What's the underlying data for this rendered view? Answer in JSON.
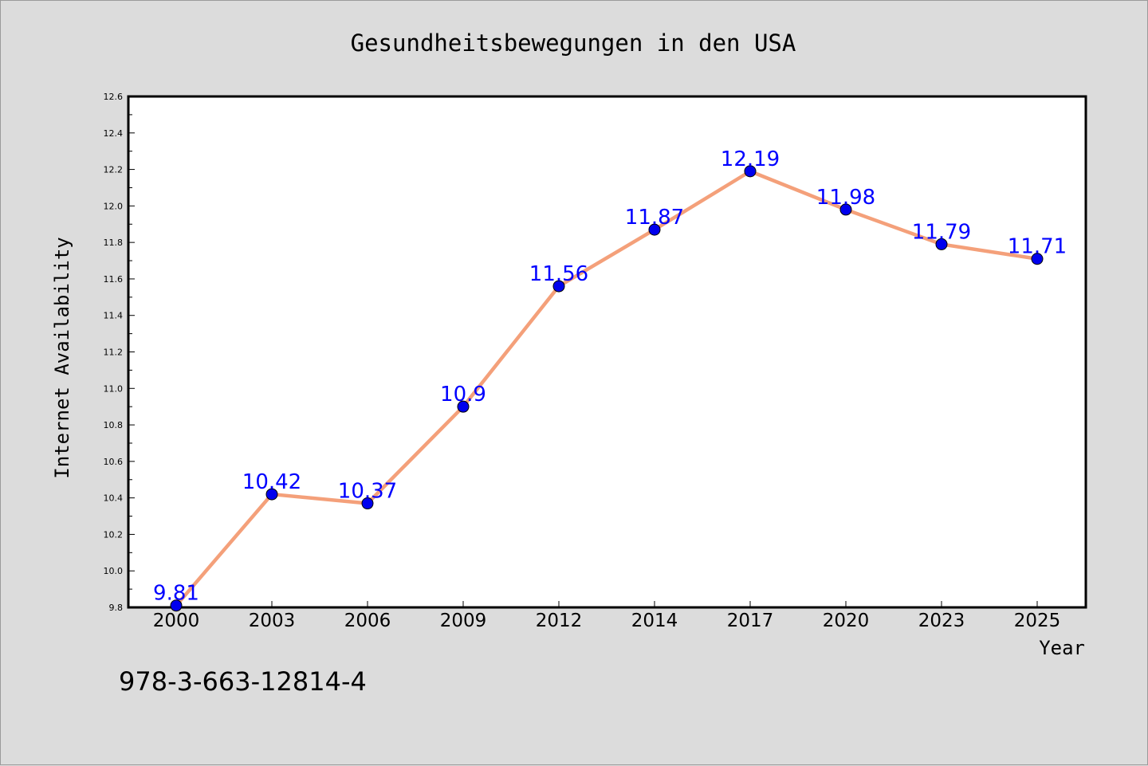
{
  "chart_data": {
    "type": "line",
    "title": "Gesundheitsbewegungen in den USA",
    "xlabel": "Year",
    "ylabel": "Internet Availability",
    "categories": [
      "2000",
      "2003",
      "2006",
      "2009",
      "2012",
      "2014",
      "2017",
      "2020",
      "2023",
      "2025"
    ],
    "series": [
      {
        "values": [
          9.81,
          10.42,
          10.37,
          10.9,
          11.56,
          11.87,
          12.19,
          11.98,
          11.79,
          11.71
        ]
      }
    ],
    "data_labels": [
      "9.81",
      "10.42",
      "10.37",
      "10.9",
      "11.56",
      "11.87",
      "12.19",
      "11.98",
      "11.79",
      "11.71"
    ],
    "ylim": [
      9.8,
      12.6
    ],
    "yticks": [
      "9.8",
      "10.0",
      "10.2",
      "10.4",
      "10.6",
      "10.8",
      "11.0",
      "11.2",
      "11.4",
      "11.6",
      "11.8",
      "12.0",
      "12.2",
      "12.4",
      "12.6"
    ],
    "grid": false,
    "legend": "none",
    "colors": {
      "line": "#f4a07a",
      "marker": "#0000ee",
      "label": "#0000ff",
      "background": "#dcdcdc",
      "plot": "#ffffff"
    }
  },
  "footer": {
    "isbn": "978-3-663-12814-4"
  }
}
